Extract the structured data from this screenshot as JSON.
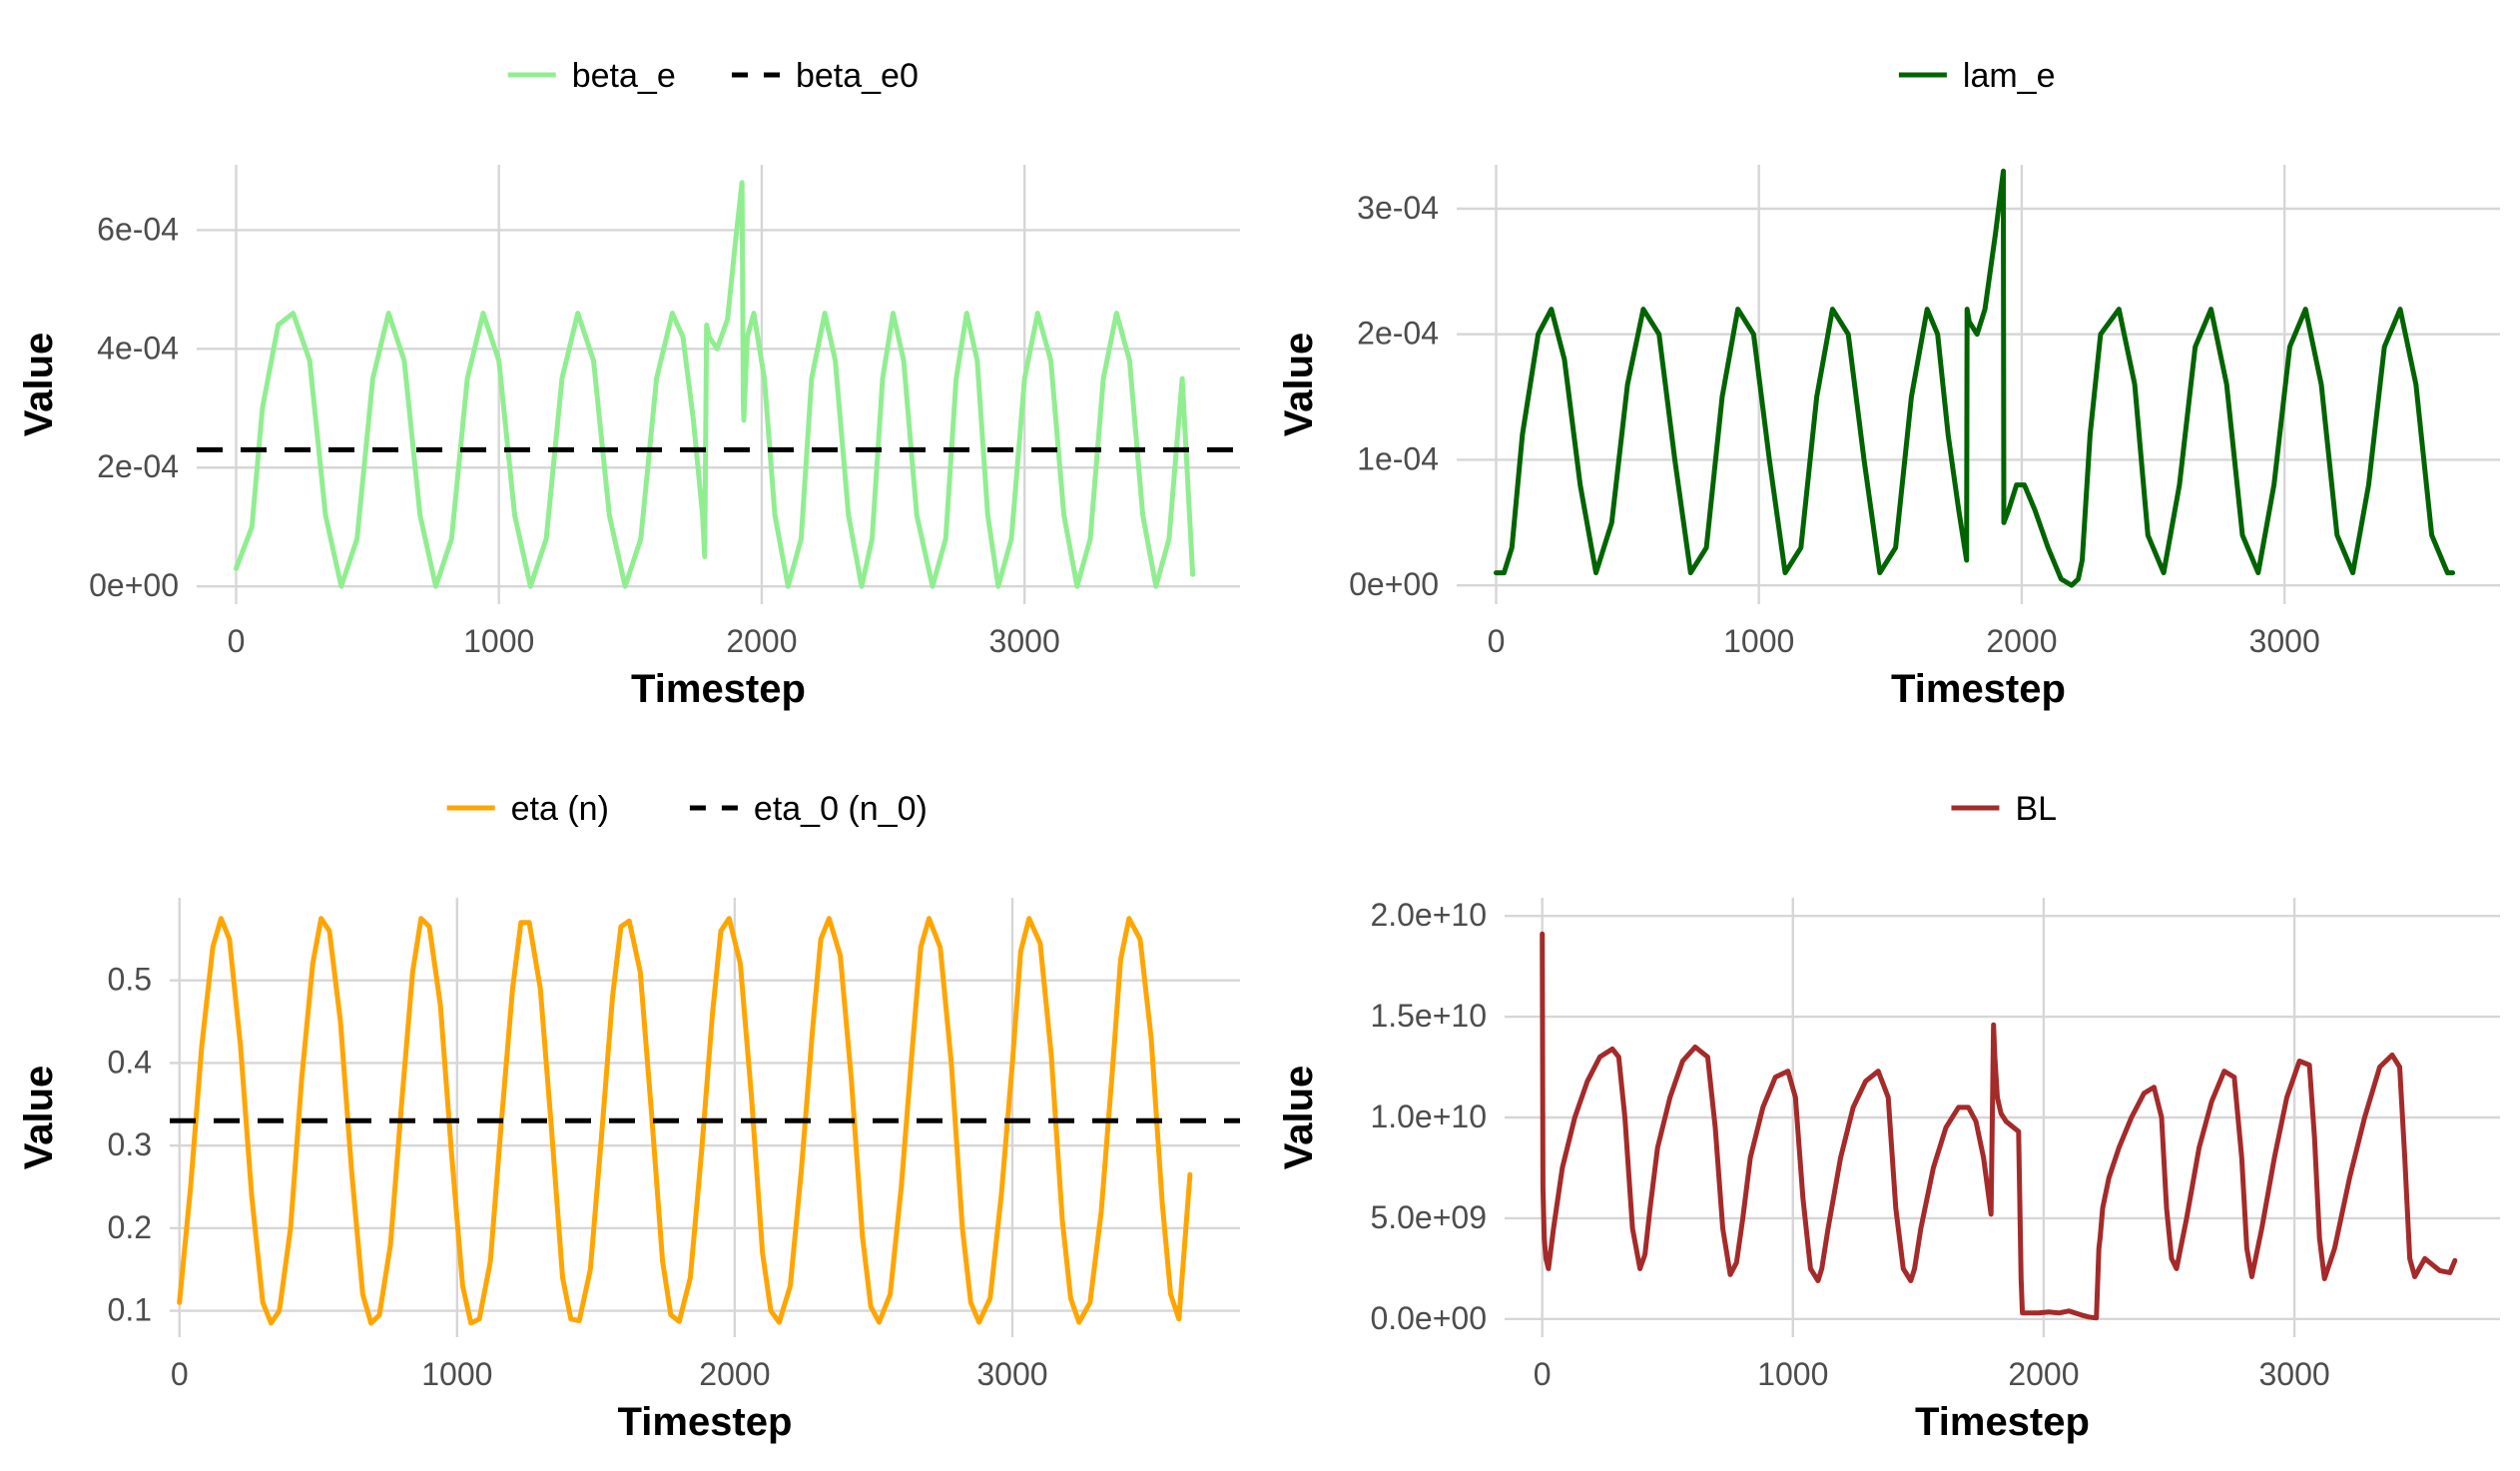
{
  "chart_data": [
    {
      "type": "line",
      "title": "",
      "xlabel": "Timestep",
      "ylabel": "Value",
      "xlim": [
        -150,
        3820
      ],
      "ylim": [
        -3e-05,
        0.00071
      ],
      "x_ticks": [
        0,
        1000,
        2000,
        3000
      ],
      "x_tick_labels": [
        "0",
        "1000",
        "2000",
        "3000"
      ],
      "y_ticks": [
        0,
        0.0002,
        0.0004,
        0.0006
      ],
      "y_tick_labels": [
        "0e+00",
        "2e-04",
        "4e-04",
        "6e-04"
      ],
      "grid": true,
      "legend_position": "top",
      "series": [
        {
          "name": "beta_e",
          "color": "#90ee90",
          "style": "solid",
          "x": [
            0,
            60,
            100,
            160,
            217,
            280,
            340,
            400,
            460,
            520,
            580,
            640,
            700,
            760,
            820,
            880,
            940,
            1000,
            1060,
            1120,
            1180,
            1240,
            1300,
            1360,
            1420,
            1480,
            1540,
            1600,
            1660,
            1700,
            1740,
            1775,
            1783,
            1790,
            1800,
            1830,
            1870,
            1900,
            1925,
            1930,
            1932,
            1945,
            1970,
            2010,
            2050,
            2100,
            2150,
            2190,
            2240,
            2280,
            2330,
            2380,
            2420,
            2460,
            2500,
            2540,
            2590,
            2650,
            2700,
            2740,
            2780,
            2820,
            2860,
            2900,
            2950,
            3000,
            3050,
            3100,
            3150,
            3200,
            3250,
            3300,
            3350,
            3400,
            3450,
            3500,
            3550,
            3600,
            3640
          ],
          "values": [
            3e-05,
            0.0001,
            0.0003,
            0.00044,
            0.00046,
            0.00038,
            0.00012,
            0.0,
            8e-05,
            0.00035,
            0.00046,
            0.00038,
            0.00012,
            0.0,
            8e-05,
            0.00035,
            0.00046,
            0.00038,
            0.00012,
            0.0,
            8e-05,
            0.00035,
            0.00046,
            0.00038,
            0.00012,
            0.0,
            8e-05,
            0.00035,
            0.00046,
            0.00042,
            0.00028,
            0.00012,
            5e-05,
            0.00044,
            0.00042,
            0.0004,
            0.00045,
            0.00058,
            0.00068,
            0.00031,
            0.00028,
            0.00042,
            0.00046,
            0.00035,
            0.00012,
            0.0,
            8e-05,
            0.00035,
            0.00046,
            0.00038,
            0.00012,
            0.0,
            8e-05,
            0.00035,
            0.00046,
            0.00038,
            0.00012,
            0.0,
            8e-05,
            0.00035,
            0.00046,
            0.00038,
            0.00012,
            0.0,
            8e-05,
            0.00035,
            0.00046,
            0.00038,
            0.00012,
            0.0,
            8e-05,
            0.00035,
            0.00046,
            0.00038,
            0.00012,
            0.0,
            8e-05,
            0.00035,
            2e-05
          ]
        },
        {
          "name": "beta_e0",
          "color": "#000000",
          "style": "dashed",
          "x": [
            -150,
            3820
          ],
          "values": [
            0.00023,
            0.00023
          ]
        }
      ]
    },
    {
      "type": "line",
      "title": "",
      "xlabel": "Timestep",
      "ylabel": "Value",
      "xlim": [
        -150,
        3820
      ],
      "ylim": [
        -1.5e-05,
        0.000335
      ],
      "x_ticks": [
        0,
        1000,
        2000,
        3000
      ],
      "x_tick_labels": [
        "0",
        "1000",
        "2000",
        "3000"
      ],
      "y_ticks": [
        0,
        0.0001,
        0.0002,
        0.0003
      ],
      "y_tick_labels": [
        "0e+00",
        "1e-04",
        "2e-04",
        "3e-04"
      ],
      "grid": true,
      "legend_position": "top",
      "series": [
        {
          "name": "lam_e",
          "color": "#006400",
          "style": "solid",
          "x": [
            0,
            30,
            60,
            100,
            160,
            210,
            260,
            320,
            380,
            440,
            500,
            560,
            620,
            680,
            740,
            800,
            860,
            920,
            980,
            1040,
            1100,
            1160,
            1220,
            1280,
            1340,
            1400,
            1460,
            1520,
            1580,
            1640,
            1680,
            1720,
            1760,
            1790,
            1792,
            1800,
            1830,
            1860,
            1900,
            1930,
            1932,
            1950,
            1980,
            2010,
            2050,
            2100,
            2150,
            2190,
            2215,
            2230,
            2260,
            2300,
            2370,
            2430,
            2480,
            2540,
            2600,
            2660,
            2720,
            2780,
            2840,
            2900,
            2960,
            3020,
            3080,
            3140,
            3200,
            3260,
            3320,
            3380,
            3440,
            3500,
            3560,
            3620,
            3640
          ],
          "values": [
            1e-05,
            1e-05,
            3e-05,
            0.00012,
            0.0002,
            0.00022,
            0.00018,
            8e-05,
            1e-05,
            5e-05,
            0.00016,
            0.00022,
            0.0002,
            0.0001,
            1e-05,
            3e-05,
            0.00015,
            0.00022,
            0.0002,
            0.0001,
            1e-05,
            3e-05,
            0.00015,
            0.00022,
            0.0002,
            0.0001,
            1e-05,
            3e-05,
            0.00015,
            0.00022,
            0.0002,
            0.00012,
            6e-05,
            2e-05,
            0.00022,
            0.00021,
            0.0002,
            0.00022,
            0.00028,
            0.00033,
            5e-05,
            6e-05,
            8e-05,
            8e-05,
            6e-05,
            3e-05,
            5e-06,
            0.0,
            5e-06,
            2e-05,
            0.00012,
            0.0002,
            0.00022,
            0.00016,
            4e-05,
            1e-05,
            8e-05,
            0.00019,
            0.00022,
            0.00016,
            4e-05,
            1e-05,
            8e-05,
            0.00019,
            0.00022,
            0.00016,
            4e-05,
            1e-05,
            8e-05,
            0.00019,
            0.00022,
            0.00016,
            4e-05,
            1e-05,
            1e-05
          ]
        }
      ]
    },
    {
      "type": "line",
      "title": "",
      "xlabel": "Timestep",
      "ylabel": "Value",
      "xlim": [
        -35,
        3820
      ],
      "ylim": [
        0.068,
        0.6
      ],
      "x_ticks": [
        0,
        1000,
        2000,
        3000
      ],
      "x_tick_labels": [
        "0",
        "1000",
        "2000",
        "3000"
      ],
      "y_ticks": [
        0.1,
        0.2,
        0.3,
        0.4,
        0.5
      ],
      "y_tick_labels": [
        "0.1",
        "0.2",
        "0.3",
        "0.4",
        "0.5"
      ],
      "grid": true,
      "legend_position": "top",
      "series": [
        {
          "name": "eta (n)",
          "color": "#ffa500",
          "style": "solid",
          "x": [
            0,
            40,
            80,
            120,
            150,
            180,
            220,
            260,
            300,
            330,
            360,
            400,
            440,
            480,
            510,
            540,
            580,
            620,
            660,
            690,
            720,
            760,
            800,
            840,
            870,
            900,
            940,
            980,
            1020,
            1050,
            1080,
            1120,
            1160,
            1200,
            1230,
            1260,
            1300,
            1340,
            1380,
            1410,
            1440,
            1480,
            1520,
            1560,
            1590,
            1620,
            1660,
            1700,
            1740,
            1770,
            1800,
            1840,
            1880,
            1920,
            1950,
            1980,
            2020,
            2060,
            2100,
            2130,
            2160,
            2200,
            2240,
            2280,
            2310,
            2340,
            2380,
            2420,
            2460,
            2490,
            2520,
            2560,
            2600,
            2640,
            2670,
            2700,
            2740,
            2780,
            2820,
            2850,
            2880,
            2920,
            2960,
            3000,
            3030,
            3060,
            3100,
            3140,
            3180,
            3210,
            3240,
            3280,
            3320,
            3360,
            3390,
            3420,
            3460,
            3500,
            3540,
            3570,
            3600,
            3640
          ],
          "values": [
            0.11,
            0.25,
            0.42,
            0.54,
            0.575,
            0.55,
            0.42,
            0.24,
            0.11,
            0.085,
            0.1,
            0.2,
            0.38,
            0.52,
            0.575,
            0.56,
            0.45,
            0.27,
            0.12,
            0.085,
            0.095,
            0.18,
            0.35,
            0.51,
            0.575,
            0.565,
            0.47,
            0.29,
            0.13,
            0.085,
            0.09,
            0.16,
            0.33,
            0.49,
            0.57,
            0.57,
            0.49,
            0.32,
            0.14,
            0.09,
            0.088,
            0.15,
            0.31,
            0.48,
            0.565,
            0.572,
            0.51,
            0.34,
            0.16,
            0.095,
            0.087,
            0.14,
            0.29,
            0.46,
            0.56,
            0.575,
            0.52,
            0.36,
            0.17,
            0.1,
            0.086,
            0.13,
            0.27,
            0.44,
            0.55,
            0.575,
            0.53,
            0.38,
            0.19,
            0.105,
            0.086,
            0.12,
            0.25,
            0.42,
            0.54,
            0.575,
            0.54,
            0.4,
            0.2,
            0.11,
            0.086,
            0.115,
            0.24,
            0.4,
            0.535,
            0.575,
            0.545,
            0.41,
            0.21,
            0.115,
            0.086,
            0.11,
            0.22,
            0.39,
            0.525,
            0.575,
            0.55,
            0.43,
            0.23,
            0.12,
            0.09,
            0.265
          ]
        },
        {
          "name": "eta_0 (n_0)",
          "color": "#000000",
          "style": "dashed",
          "x": [
            -35,
            3820
          ],
          "values": [
            0.33,
            0.33
          ]
        }
      ]
    },
    {
      "type": "line",
      "title": "",
      "xlabel": "Timestep",
      "ylabel": "Value",
      "xlim": [
        -150,
        3820
      ],
      "ylim": [
        -900000000,
        20900000000
      ],
      "x_ticks": [
        0,
        1000,
        2000,
        3000
      ],
      "x_tick_labels": [
        "0",
        "1000",
        "2000",
        "3000"
      ],
      "y_ticks": [
        0,
        5000000000,
        10000000000,
        15000000000,
        20000000000
      ],
      "y_tick_labels": [
        "0.0e+00",
        "5.0e+09",
        "1.0e+10",
        "1.5e+10",
        "2.0e+10"
      ],
      "grid": true,
      "legend_position": "top",
      "series": [
        {
          "name": "BL",
          "color": "#a52a2a",
          "style": "solid",
          "x": [
            0,
            3,
            8,
            15,
            25,
            45,
            80,
            130,
            180,
            230,
            280,
            305,
            330,
            360,
            390,
            410,
            430,
            460,
            510,
            560,
            610,
            660,
            690,
            720,
            750,
            775,
            800,
            830,
            880,
            930,
            980,
            1010,
            1040,
            1070,
            1100,
            1115,
            1140,
            1190,
            1240,
            1290,
            1340,
            1380,
            1410,
            1440,
            1470,
            1485,
            1510,
            1560,
            1610,
            1660,
            1700,
            1730,
            1760,
            1790,
            1800,
            1805,
            1815,
            1830,
            1850,
            1880,
            1900,
            1910,
            1915,
            1930,
            1980,
            2020,
            2060,
            2100,
            2150,
            2180,
            2210,
            2220,
            2225,
            2235,
            2260,
            2300,
            2350,
            2400,
            2440,
            2470,
            2490,
            2510,
            2530,
            2570,
            2620,
            2670,
            2720,
            2760,
            2790,
            2810,
            2830,
            2870,
            2920,
            2970,
            3020,
            3060,
            3080,
            3100,
            3120,
            3160,
            3220,
            3280,
            3340,
            3390,
            3420,
            3440,
            3460,
            3480,
            3520,
            3580,
            3620,
            3640
          ],
          "values": [
            19100000000,
            6500000000,
            4000000000,
            3000000000,
            2500000000,
            4500000000,
            7500000000,
            10000000000,
            11800000000,
            13000000000,
            13400000000,
            13000000000,
            10000000000,
            4500000000,
            2500000000,
            3200000000,
            5500000000,
            8500000000,
            11000000000,
            12800000000,
            13500000000,
            13000000000,
            9500000000,
            4500000000,
            2200000000,
            2800000000,
            5000000000,
            8000000000,
            10500000000,
            12000000000,
            12300000000,
            11000000000,
            6000000000,
            2500000000,
            1900000000,
            2500000000,
            4500000000,
            8000000000,
            10500000000,
            11800000000,
            12300000000,
            11000000000,
            5500000000,
            2500000000,
            1900000000,
            2500000000,
            4500000000,
            7500000000,
            9500000000,
            10500000000,
            10500000000,
            9800000000,
            8000000000,
            5200000000,
            14600000000,
            13000000000,
            11000000000,
            10200000000,
            9800000000,
            9500000000,
            9300000000,
            2000000000,
            300000000,
            300000000,
            300000000,
            350000000,
            300000000,
            400000000,
            200000000,
            100000000,
            50000000,
            3500000000,
            4000000000,
            5500000000,
            7000000000,
            8500000000,
            10000000000,
            11200000000,
            11500000000,
            10000000000,
            5500000000,
            3000000000,
            2500000000,
            5000000000,
            8500000000,
            10800000000,
            12300000000,
            12000000000,
            8000000000,
            3500000000,
            2100000000,
            4500000000,
            8000000000,
            11000000000,
            12800000000,
            12600000000,
            9000000000,
            4000000000,
            2000000000,
            3500000000,
            7000000000,
            10000000000,
            12500000000,
            13100000000,
            12500000000,
            8000000000,
            3000000000,
            2100000000,
            3000000000,
            2400000000,
            2300000000,
            2900000000
          ]
        }
      ]
    }
  ]
}
